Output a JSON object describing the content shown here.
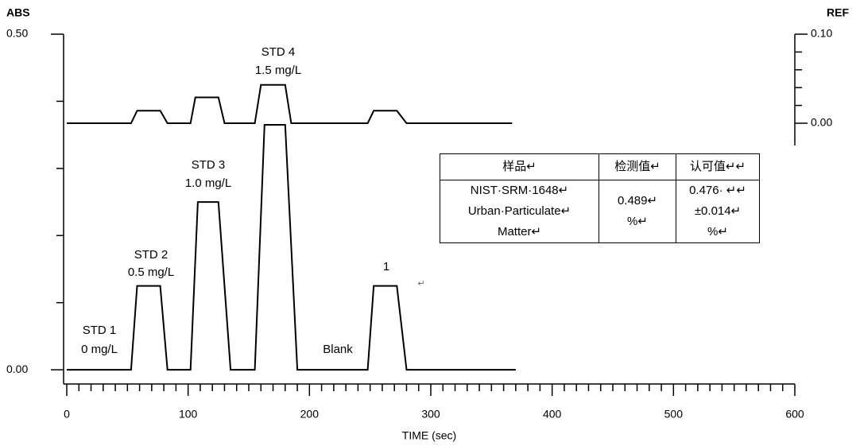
{
  "chart_data": {
    "type": "line",
    "y_label": "ABS",
    "y2_label": "REF",
    "x_label": "TIME (sec)",
    "xlim": [
      0,
      600
    ],
    "xticks": [
      0,
      100,
      200,
      300,
      400,
      500,
      600
    ],
    "xminorticks": [
      10,
      20,
      30,
      40,
      50,
      60,
      70,
      80,
      90,
      110,
      120,
      130,
      140,
      150,
      160,
      170,
      180,
      190,
      210,
      220,
      230,
      240,
      250,
      260,
      270,
      280,
      290,
      310,
      320,
      330,
      340,
      350,
      360,
      370,
      380,
      390,
      410,
      420,
      430,
      440,
      450,
      460,
      470,
      480,
      490,
      510,
      520,
      530,
      540,
      550,
      560,
      570,
      580,
      590
    ],
    "ylim": [
      -0.02,
      0.5
    ],
    "yticks": [
      {
        "value": 0,
        "label": "0.00"
      },
      {
        "value": 0.5,
        "label": "0.50"
      }
    ],
    "yminorticks": [
      0.1,
      0.2,
      0.3,
      0.4
    ],
    "y2lim": [
      -0.025,
      0.1
    ],
    "y2ticks": [
      {
        "value": 0,
        "label": "0.00"
      },
      {
        "value": 0.1,
        "label": "0.10"
      }
    ],
    "y2minorticks": [
      0.02,
      0.04,
      0.06,
      0.08
    ],
    "series": [
      {
        "name": "ABS",
        "color": "#000000",
        "x": [
          0,
          53,
          58,
          77,
          83,
          102,
          108,
          125,
          135,
          155,
          163,
          180,
          190,
          248,
          253,
          272,
          280,
          370
        ],
        "values": [
          0,
          0,
          0.125,
          0.125,
          0,
          0,
          0.25,
          0.25,
          0,
          0,
          0.365,
          0.365,
          0,
          0,
          0.125,
          0.125,
          0,
          0
        ]
      },
      {
        "name": "REF",
        "color": "#000000",
        "axis": "y2",
        "x": [
          0,
          53,
          58,
          77,
          83,
          102,
          106,
          125,
          130,
          155,
          160,
          180,
          185,
          248,
          253,
          272,
          280,
          367
        ],
        "values": [
          0,
          0,
          0.014,
          0.014,
          0,
          0,
          0.029,
          0.029,
          0,
          0,
          0.043,
          0.043,
          0,
          0,
          0.014,
          0.014,
          0,
          0
        ]
      }
    ],
    "annotations": [
      "STD 1",
      "0 mg/L",
      "STD 2",
      "0.5 mg/L",
      "STD 3",
      "1.0 mg/L",
      "STD 4",
      "1.5 mg/L",
      "Blank",
      "1",
      "↵"
    ],
    "table": {
      "header": [
        "样品↵",
        "检测值↵",
        "认可值↵↵"
      ],
      "rows": [
        [
          [
            "NIST·SRM·1648↵",
            "Urban·Particulate↵",
            "Matter↵"
          ],
          [
            "0.489↵",
            "%↵"
          ],
          [
            "0.476· ↵↵",
            "±0.014↵",
            "%↵"
          ]
        ]
      ]
    }
  }
}
